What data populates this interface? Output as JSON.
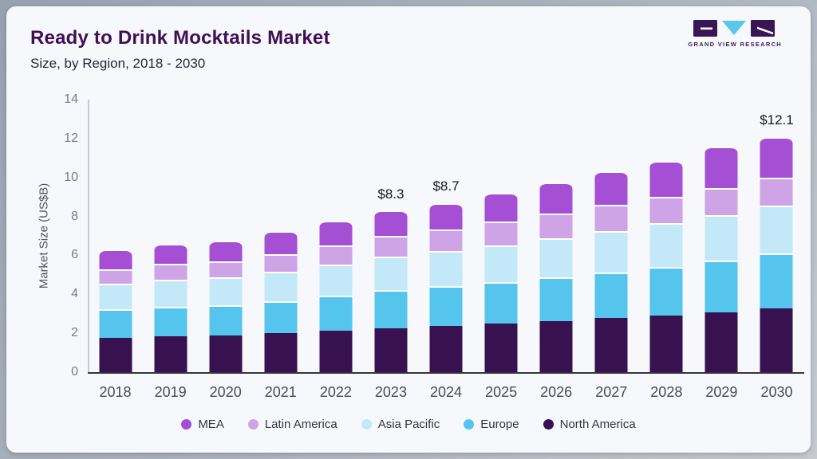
{
  "header": {
    "title": "Ready to Drink Mocktails Market",
    "subtitle": "Size, by Region, 2018 - 2030",
    "logo_text": "GRAND VIEW RESEARCH"
  },
  "colors": {
    "card_background": "#f6f8fb",
    "frame": "#aab3bd",
    "title": "#3f0f52",
    "logo_purple": "#3a1554",
    "logo_triangle": "#58c7ea",
    "axis_line_x": "#35353a",
    "axis_line_y": "#c7ccd4"
  },
  "chart_data": {
    "type": "bar",
    "variant": "stacked",
    "title": "Ready to Drink Mocktails Market",
    "subtitle": "Size, by Region, 2018 - 2030",
    "xlabel": "",
    "ylabel": "Market Size (US$B)",
    "ylim": [
      0,
      14
    ],
    "yticks": [
      0,
      2,
      4,
      6,
      8,
      10,
      12,
      14
    ],
    "grid": false,
    "legend_position": "bottom",
    "categories": [
      "2018",
      "2019",
      "2020",
      "2021",
      "2022",
      "2023",
      "2024",
      "2025",
      "2026",
      "2027",
      "2028",
      "2029",
      "2030"
    ],
    "series": [
      {
        "name": "North America",
        "color": "#371150",
        "values": [
          1.78,
          1.86,
          1.9,
          2.0,
          2.14,
          2.27,
          2.38,
          2.5,
          2.63,
          2.77,
          2.92,
          3.09,
          3.28
        ]
      },
      {
        "name": "Europe",
        "color": "#55c5ee",
        "values": [
          1.45,
          1.51,
          1.55,
          1.66,
          1.79,
          1.93,
          2.03,
          2.13,
          2.24,
          2.36,
          2.49,
          2.64,
          2.81
        ]
      },
      {
        "name": "Asia Pacific",
        "color": "#c3e8f8",
        "values": [
          1.33,
          1.39,
          1.42,
          1.49,
          1.6,
          1.72,
          1.8,
          1.9,
          2.0,
          2.11,
          2.23,
          2.35,
          2.48
        ]
      },
      {
        "name": "Latin America",
        "color": "#cea4e6",
        "values": [
          0.74,
          0.79,
          0.82,
          0.92,
          1.0,
          1.1,
          1.13,
          1.2,
          1.28,
          1.34,
          1.37,
          1.39,
          1.42
        ]
      },
      {
        "name": "MEA",
        "color": "#a44fd4",
        "values": [
          1.0,
          1.05,
          1.06,
          1.18,
          1.27,
          1.28,
          1.36,
          1.47,
          1.6,
          1.72,
          1.84,
          2.11,
          2.11
        ]
      }
    ],
    "totals": [
      6.3,
      6.6,
      6.75,
      7.25,
      7.8,
      8.3,
      8.7,
      9.2,
      9.75,
      10.3,
      10.85,
      11.58,
      12.1
    ],
    "annotations": [
      {
        "category": "2023",
        "text": "$8.3"
      },
      {
        "category": "2024",
        "text": "$8.7"
      },
      {
        "category": "2030",
        "text": "$12.1"
      }
    ],
    "legend_order": [
      "MEA",
      "Latin America",
      "Asia Pacific",
      "Europe",
      "North America"
    ]
  }
}
